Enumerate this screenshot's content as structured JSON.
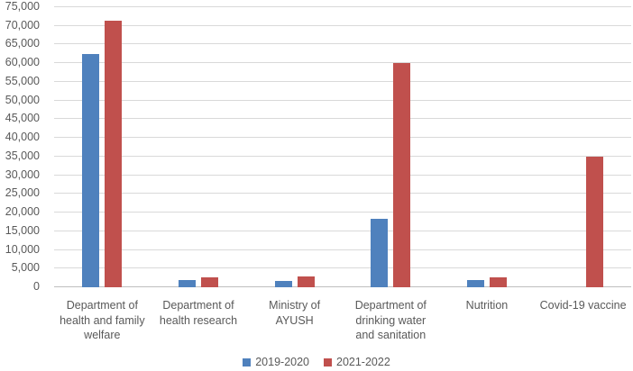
{
  "chart_data": {
    "type": "bar",
    "title": "",
    "xlabel": "",
    "ylabel": "",
    "categories": [
      "Department of health and family welfare",
      "Department of health research",
      "Ministry of AYUSH",
      "Department of drinking water and sanitation",
      "Nutrition",
      "Covid-19 vaccine"
    ],
    "series": [
      {
        "name": "2019-2020",
        "color": "#4F81BD",
        "values": [
          62397,
          1934,
          1784,
          18264,
          1880,
          0
        ]
      },
      {
        "name": "2021-2022",
        "color": "#C0504D",
        "values": [
          71269,
          2663,
          2970,
          60030,
          2700,
          35000
        ]
      }
    ],
    "ylim": [
      0,
      75000
    ],
    "ytick_step": 5000,
    "ytick_labels": [
      "0",
      "5,000",
      "10,000",
      "15,000",
      "20,000",
      "25,000",
      "30,000",
      "35,000",
      "40,000",
      "45,000",
      "50,000",
      "55,000",
      "60,000",
      "65,000",
      "70,000",
      "75,000"
    ],
    "grid": true,
    "legend_position": "bottom"
  },
  "colors": {
    "gridline": "#D9D9D9",
    "axis_line": "#BFBFBF",
    "text": "#595959",
    "background": "#FFFFFF"
  }
}
